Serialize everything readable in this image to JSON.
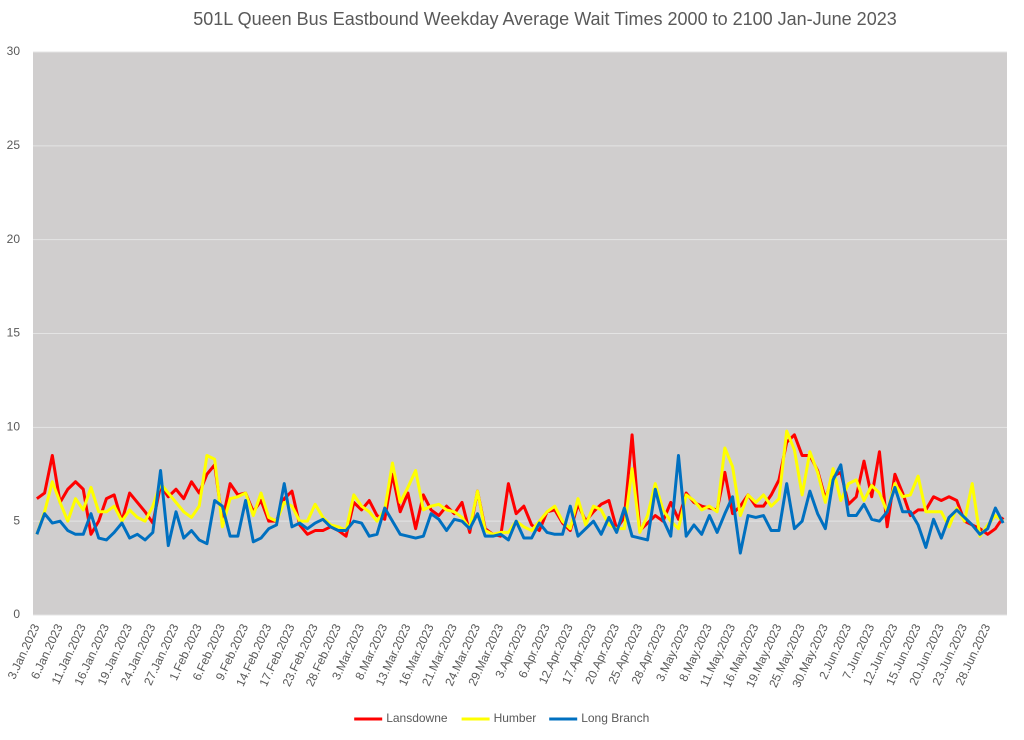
{
  "chart_data": {
    "type": "line",
    "title": "501L Queen Bus Eastbound Weekday Average Wait Times 2000 to 2100 Jan-June 2023",
    "categories": [
      "3.Jan.2023",
      null,
      null,
      "6.Jan.2023",
      null,
      null,
      "11.Jan.2023",
      null,
      null,
      "16.Jan.2023",
      null,
      null,
      "19.Jan.2023",
      null,
      null,
      "24.Jan.2023",
      null,
      null,
      "27.Jan.2023",
      null,
      null,
      "1.Feb.2023",
      null,
      null,
      "6.Feb.2023",
      null,
      null,
      "9.Feb.2023",
      null,
      null,
      "14.Feb.2023",
      null,
      null,
      "17.Feb.2023",
      null,
      null,
      "23.Feb.2023",
      null,
      null,
      "28.Feb.2023",
      null,
      null,
      "3.Mar.2023",
      null,
      null,
      "8.Mar.2023",
      null,
      null,
      "13.Mar.2023",
      null,
      null,
      "16.Mar.2023",
      null,
      null,
      "21.Mar.2023",
      null,
      null,
      "24.Mar.2023",
      null,
      null,
      "29.Mar.2023",
      null,
      null,
      "3.Apr.2023",
      null,
      null,
      "6.Apr.2023",
      null,
      null,
      "12.Apr.2023",
      null,
      null,
      "17.Apr.2023",
      null,
      null,
      "20.Apr.2023",
      null,
      null,
      "25.Apr.2023",
      null,
      null,
      "28.Apr.2023",
      null,
      null,
      "3.May.2023",
      null,
      null,
      "8.May.2023",
      null,
      null,
      "11.May.2023",
      null,
      null,
      "16.May.2023",
      null,
      null,
      "19.May.2023",
      null,
      null,
      "25.May.2023",
      null,
      null,
      "30.May.2023",
      null,
      null,
      "2.Jun.2023",
      null,
      null,
      "7.Jun.2023",
      null,
      null,
      "12.Jun.2023",
      null,
      null,
      "15.Jun.2023",
      null,
      null,
      "20.Jun.2023",
      null,
      null,
      "23.Jun.2023",
      null,
      null,
      "28.Jun.2023",
      null,
      null
    ],
    "series": [
      {
        "name": "Lansdowne",
        "color": "#ff0000",
        "values": [
          6.2,
          6.5,
          8.5,
          6.0,
          6.7,
          7.1,
          6.7,
          4.3,
          5.0,
          6.2,
          6.4,
          5.0,
          6.5,
          6.0,
          5.5,
          4.9,
          6.9,
          6.3,
          6.7,
          6.2,
          7.1,
          6.5,
          7.5,
          8.0,
          5.0,
          7.0,
          6.4,
          6.5,
          5.5,
          6.1,
          5.0,
          5.0,
          6.2,
          6.6,
          4.8,
          4.3,
          4.5,
          4.5,
          4.7,
          4.5,
          4.2,
          6.0,
          5.6,
          6.1,
          5.3,
          5.1,
          7.5,
          5.5,
          6.5,
          4.6,
          6.4,
          5.6,
          5.3,
          5.8,
          5.4,
          6.0,
          4.4,
          6.6,
          4.6,
          4.3,
          4.2,
          7.0,
          5.4,
          5.8,
          4.8,
          4.5,
          5.5,
          5.6,
          4.9,
          4.5,
          5.9,
          5.0,
          5.5,
          5.9,
          6.1,
          4.6,
          5.2,
          9.6,
          4.5,
          4.9,
          5.3,
          5.0,
          6.0,
          5.1,
          6.5,
          6.0,
          5.8,
          5.7,
          5.6,
          7.6,
          5.4,
          5.8,
          6.4,
          5.8,
          5.8,
          6.4,
          7.2,
          9.2,
          9.6,
          8.5,
          8.5,
          7.7,
          6.2,
          7.4,
          7.6,
          5.9,
          6.3,
          8.2,
          6.3,
          8.7,
          4.7,
          7.5,
          6.5,
          5.3,
          5.6,
          5.6,
          6.3,
          6.1,
          6.3,
          6.1,
          5.0,
          4.8,
          4.6,
          4.3,
          4.6,
          5.2
        ]
      },
      {
        "name": "Humber",
        "color": "#ffff00",
        "values": [
          4.3,
          5.5,
          7.1,
          6.0,
          5.0,
          6.2,
          5.6,
          6.8,
          5.5,
          5.5,
          5.8,
          5.0,
          5.6,
          5.2,
          5.0,
          5.8,
          7.0,
          6.5,
          6.0,
          5.5,
          5.2,
          5.8,
          8.5,
          8.3,
          4.7,
          6.2,
          6.3,
          6.5,
          5.3,
          6.5,
          5.2,
          5.0,
          6.0,
          5.8,
          5.0,
          5.0,
          5.9,
          5.2,
          4.8,
          4.7,
          4.5,
          6.4,
          5.8,
          5.5,
          5.0,
          5.6,
          8.1,
          6.0,
          6.8,
          7.7,
          5.6,
          5.8,
          5.9,
          5.6,
          5.5,
          5.2,
          4.6,
          6.6,
          4.5,
          4.3,
          4.4,
          4.4,
          5.0,
          4.7,
          4.5,
          5.0,
          5.5,
          5.8,
          5.0,
          4.6,
          6.2,
          4.8,
          5.8,
          5.6,
          4.8,
          4.6,
          4.6,
          7.8,
          4.4,
          5.3,
          7.0,
          5.6,
          5.0,
          4.6,
          6.4,
          6.1,
          5.6,
          5.8,
          5.5,
          8.9,
          7.9,
          5.3,
          6.4,
          6.0,
          6.4,
          5.8,
          6.2,
          9.8,
          8.8,
          6.4,
          8.7,
          7.6,
          6.0,
          7.8,
          6.1,
          7.0,
          7.2,
          6.1,
          6.9,
          6.5,
          5.5,
          7.0,
          6.3,
          6.4,
          7.4,
          5.5,
          5.5,
          5.5,
          4.7,
          5.7,
          5.0,
          7.0,
          4.2,
          4.8,
          5.3,
          5.0
        ]
      },
      {
        "name": "Long Branch",
        "color": "#0070c0",
        "values": [
          4.3,
          5.4,
          4.9,
          5.0,
          4.5,
          4.3,
          4.3,
          5.4,
          4.1,
          4.0,
          4.4,
          4.9,
          4.1,
          4.3,
          4.0,
          4.4,
          7.7,
          3.7,
          5.5,
          4.1,
          4.5,
          4.0,
          3.8,
          6.1,
          5.8,
          4.2,
          4.2,
          6.1,
          3.9,
          4.1,
          4.6,
          4.8,
          7.0,
          4.7,
          4.9,
          4.6,
          4.9,
          5.1,
          4.7,
          4.5,
          4.5,
          5.0,
          4.9,
          4.2,
          4.3,
          5.7,
          5.0,
          4.3,
          4.2,
          4.1,
          4.2,
          5.4,
          5.1,
          4.5,
          5.1,
          5.0,
          4.6,
          5.4,
          4.2,
          4.2,
          4.3,
          4.0,
          5.0,
          4.1,
          4.1,
          4.9,
          4.4,
          4.3,
          4.3,
          5.8,
          4.2,
          4.6,
          5.0,
          4.3,
          5.2,
          4.4,
          5.7,
          4.2,
          4.1,
          4.0,
          6.7,
          5.1,
          4.2,
          8.5,
          4.2,
          4.8,
          4.3,
          5.3,
          4.4,
          5.4,
          6.3,
          3.3,
          5.3,
          5.2,
          5.3,
          4.5,
          4.5,
          7.0,
          4.6,
          5.0,
          6.6,
          5.4,
          4.6,
          7.2,
          8.0,
          5.3,
          5.3,
          5.9,
          5.1,
          5.0,
          5.5,
          6.8,
          5.5,
          5.5,
          4.8,
          3.6,
          5.1,
          4.1,
          5.2,
          5.6,
          5.2,
          4.8,
          4.3,
          4.6,
          5.7,
          4.9
        ]
      }
    ],
    "ylim": [
      0,
      30
    ],
    "yticks": [
      0,
      5,
      10,
      15,
      20,
      25,
      30
    ],
    "grid": true,
    "legend": "bottom",
    "plot_background": "#d0cece"
  }
}
